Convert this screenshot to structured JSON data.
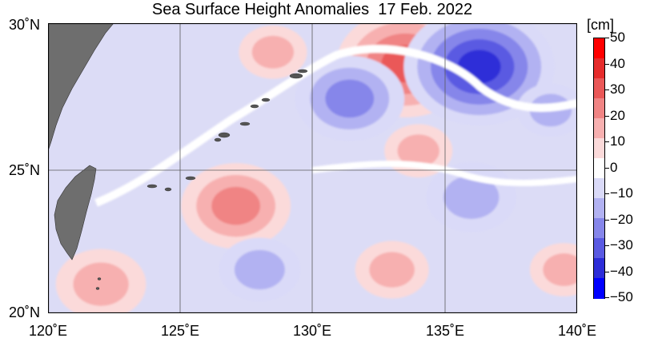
{
  "map": {
    "title": "Sea Surface Height Anomalies  17 Feb. 2022",
    "lon_range": [
      120,
      140
    ],
    "lat_range": [
      20,
      30
    ],
    "lat_labels": [
      "30˚N",
      "25˚N",
      "20˚N"
    ],
    "lon_labels": [
      "120˚E",
      "125˚E",
      "130˚E",
      "135˚E",
      "140˚E"
    ],
    "land_color": "#6e6e6e",
    "ocean_zero_color": "#ffffff",
    "gridlines": true
  },
  "colorbar": {
    "unit": "[cm]",
    "ticks": [
      "50",
      "40",
      "30",
      "20",
      "10",
      "0",
      "−10",
      "−20",
      "−30",
      "−40",
      "−50"
    ],
    "colors": [
      "#ff0000",
      "#e62c2c",
      "#ea5858",
      "#f08484",
      "#f7b0b0",
      "#fbdada",
      "#ffffff",
      "#dadaf8",
      "#b2b2f2",
      "#8686ea",
      "#5a5ae2",
      "#2d2dd8",
      "#0000ff"
    ]
  },
  "chart_data": {
    "type": "heatmap",
    "title": "Sea Surface Height Anomalies  17 Feb. 2022",
    "variable": "sea surface height anomaly",
    "unit": "cm",
    "value_range": [
      -50,
      50
    ],
    "features": [
      {
        "kind": "warm eddy",
        "lon": 133.5,
        "lat": 28.6,
        "value": 35
      },
      {
        "kind": "cold eddy",
        "lon": 136.3,
        "lat": 28.5,
        "value": -40
      },
      {
        "kind": "cold eddy",
        "lon": 131.4,
        "lat": 27.4,
        "value": -25
      },
      {
        "kind": "warm eddy",
        "lon": 127.1,
        "lat": 23.7,
        "value": 25
      },
      {
        "kind": "warm patch",
        "lon": 122.0,
        "lat": 21.0,
        "value": 18
      },
      {
        "kind": "cold eddy",
        "lon": 136.0,
        "lat": 24.0,
        "value": -18
      },
      {
        "kind": "cold patch",
        "lon": 128.0,
        "lat": 21.5,
        "value": -15
      },
      {
        "kind": "warm patch",
        "lon": 133.0,
        "lat": 21.5,
        "value": 12
      },
      {
        "kind": "warm patch",
        "lon": 134.0,
        "lat": 25.6,
        "value": 10
      },
      {
        "kind": "warm patch",
        "lon": 128.5,
        "lat": 29.0,
        "value": 10
      },
      {
        "kind": "cold patch",
        "lon": 139.0,
        "lat": 27.0,
        "value": -10
      },
      {
        "kind": "warm patch",
        "lon": 139.5,
        "lat": 21.5,
        "value": 10
      }
    ]
  }
}
